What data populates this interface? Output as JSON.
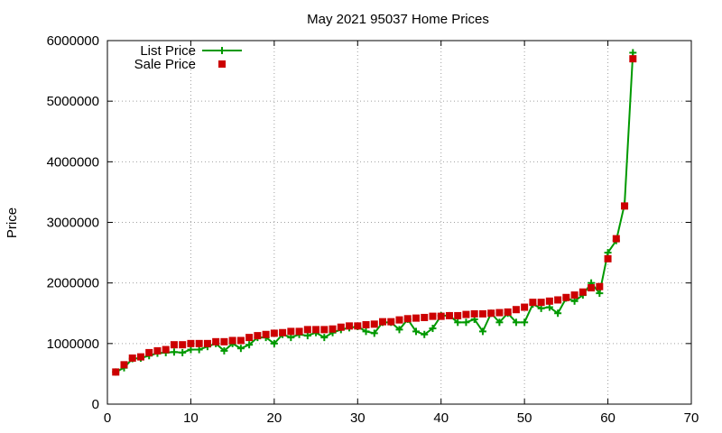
{
  "chart_data": {
    "type": "line",
    "title": "May 2021 95037 Home Prices",
    "xlabel": "",
    "ylabel": "Price",
    "xlim": [
      0,
      70
    ],
    "ylim": [
      0,
      6000000
    ],
    "xticks": [
      "0",
      "10",
      "20",
      "30",
      "40",
      "50",
      "60",
      "70"
    ],
    "yticks": [
      "0",
      "1000000",
      "2000000",
      "3000000",
      "4000000",
      "5000000",
      "6000000"
    ],
    "grid": true,
    "legend_position": "top-left",
    "x": [
      1,
      2,
      3,
      4,
      5,
      6,
      7,
      8,
      9,
      10,
      11,
      12,
      13,
      14,
      15,
      16,
      17,
      18,
      19,
      20,
      21,
      22,
      23,
      24,
      25,
      26,
      27,
      28,
      29,
      30,
      31,
      32,
      33,
      34,
      35,
      36,
      37,
      38,
      39,
      40,
      41,
      42,
      43,
      44,
      45,
      46,
      47,
      48,
      49,
      50,
      51,
      52,
      53,
      54,
      55,
      56,
      57,
      58,
      59,
      60,
      61,
      62,
      63
    ],
    "series": [
      {
        "name": "List Price",
        "style": "line+cross",
        "color": "#009900",
        "values": [
          530000,
          600000,
          750000,
          760000,
          800000,
          840000,
          850000,
          860000,
          850000,
          900000,
          900000,
          950000,
          1000000,
          880000,
          1000000,
          920000,
          980000,
          1100000,
          1100000,
          1000000,
          1150000,
          1100000,
          1150000,
          1130000,
          1180000,
          1100000,
          1180000,
          1230000,
          1260000,
          1280000,
          1200000,
          1170000,
          1350000,
          1350000,
          1230000,
          1400000,
          1200000,
          1150000,
          1250000,
          1460000,
          1460000,
          1350000,
          1350000,
          1400000,
          1200000,
          1500000,
          1350000,
          1500000,
          1350000,
          1350000,
          1650000,
          1580000,
          1600000,
          1500000,
          1750000,
          1700000,
          1800000,
          2000000,
          1830000,
          2500000,
          2700000,
          3300000,
          5800000
        ]
      },
      {
        "name": "Sale Price",
        "style": "square",
        "color": "#cc0000",
        "values": [
          530000,
          650000,
          760000,
          780000,
          850000,
          880000,
          900000,
          980000,
          980000,
          1000000,
          1000000,
          1000000,
          1030000,
          1030000,
          1050000,
          1050000,
          1100000,
          1130000,
          1150000,
          1170000,
          1180000,
          1200000,
          1200000,
          1230000,
          1230000,
          1230000,
          1240000,
          1270000,
          1290000,
          1290000,
          1310000,
          1320000,
          1360000,
          1360000,
          1390000,
          1410000,
          1420000,
          1430000,
          1450000,
          1450000,
          1460000,
          1460000,
          1480000,
          1490000,
          1490000,
          1500000,
          1510000,
          1520000,
          1560000,
          1600000,
          1680000,
          1680000,
          1700000,
          1720000,
          1760000,
          1800000,
          1850000,
          1920000,
          1940000,
          2400000,
          2730000,
          3270000,
          5700000
        ]
      }
    ]
  }
}
